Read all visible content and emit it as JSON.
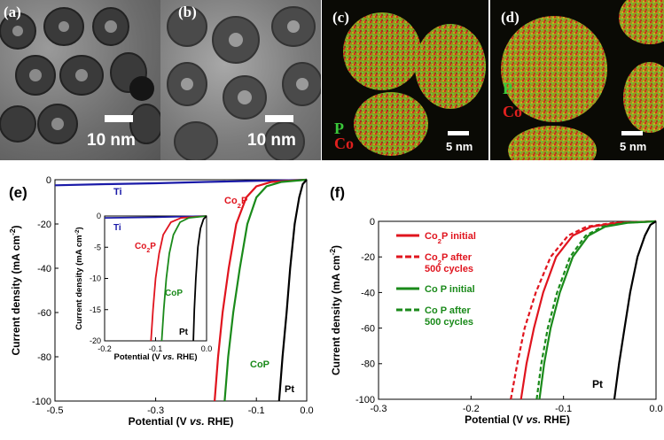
{
  "panels": {
    "a": {
      "label": "(a)",
      "scale": "10 nm"
    },
    "b": {
      "label": "(b)",
      "scale": "10 nm"
    },
    "c": {
      "label": "(c)",
      "scale": "5 nm",
      "elem1": "P",
      "elem2": "Co"
    },
    "d": {
      "label": "(d)",
      "scale": "5 nm",
      "elem1": "P",
      "elem2": "Co"
    },
    "e": {
      "label": "(e)"
    },
    "f": {
      "label": "(f)"
    }
  },
  "colors": {
    "ti": "#1a1aa8",
    "co2p": "#e0141e",
    "cop": "#1a8a1a",
    "pt": "#000000",
    "map_red": "#d8281e",
    "map_green": "#6cc23a"
  },
  "chart_data": [
    {
      "type": "line",
      "panel": "(e)",
      "xlabel": "Potential (V vs. RHE)",
      "ylabel": "Current density (mA cm-2)",
      "xlim": [
        -0.5,
        0.0
      ],
      "ylim": [
        -100,
        0
      ],
      "x_ticks": [
        "-0.5",
        "-0.3",
        "-0.1",
        "0.0"
      ],
      "y_ticks": [
        "0",
        "-20",
        "-40",
        "-60",
        "-80",
        "-100"
      ],
      "series": [
        {
          "name": "Ti",
          "points": [
            [
              -0.5,
              -2.5
            ],
            [
              -0.4,
              -2.0
            ],
            [
              -0.3,
              -1.6
            ],
            [
              -0.2,
              -1.0
            ],
            [
              -0.1,
              -0.5
            ],
            [
              -0.05,
              -0.3
            ],
            [
              0.0,
              0.0
            ]
          ]
        },
        {
          "name": "Co2P",
          "points": [
            [
              -0.183,
              -100
            ],
            [
              -0.176,
              -80
            ],
            [
              -0.167,
              -60
            ],
            [
              -0.155,
              -40
            ],
            [
              -0.14,
              -20
            ],
            [
              -0.12,
              -8
            ],
            [
              -0.1,
              -3
            ],
            [
              -0.07,
              -1
            ],
            [
              0.0,
              0.0
            ]
          ]
        },
        {
          "name": "CoP",
          "points": [
            [
              -0.163,
              -100
            ],
            [
              -0.156,
              -80
            ],
            [
              -0.146,
              -60
            ],
            [
              -0.133,
              -40
            ],
            [
              -0.118,
              -20
            ],
            [
              -0.1,
              -8
            ],
            [
              -0.08,
              -3
            ],
            [
              -0.05,
              -1
            ],
            [
              0.0,
              0.0
            ]
          ]
        },
        {
          "name": "Pt",
          "points": [
            [
              -0.055,
              -100
            ],
            [
              -0.048,
              -80
            ],
            [
              -0.04,
              -60
            ],
            [
              -0.033,
              -40
            ],
            [
              -0.024,
              -20
            ],
            [
              -0.015,
              -8
            ],
            [
              -0.008,
              -2
            ],
            [
              0.0,
              0.0
            ]
          ]
        }
      ],
      "inset": {
        "xlabel": "Potential (V vs. RHE)",
        "ylabel": "Current density (mA cm-2)",
        "xlim": [
          -0.2,
          0.0
        ],
        "ylim": [
          -20,
          0
        ],
        "x_ticks": [
          "-0.2",
          "-0.1",
          "0.0"
        ],
        "y_ticks": [
          "0",
          "-5",
          "-10",
          "-15",
          "-20"
        ],
        "series": [
          {
            "name": "Ti",
            "points": [
              [
                -0.2,
                -0.3
              ],
              [
                -0.1,
                -0.2
              ],
              [
                0.0,
                0.0
              ]
            ]
          },
          {
            "name": "Co2P",
            "points": [
              [
                -0.109,
                -20
              ],
              [
                -0.105,
                -15
              ],
              [
                -0.1,
                -10
              ],
              [
                -0.093,
                -6
              ],
              [
                -0.085,
                -3
              ],
              [
                -0.07,
                -1
              ],
              [
                -0.05,
                -0.3
              ],
              [
                0.0,
                0.0
              ]
            ]
          },
          {
            "name": "CoP",
            "points": [
              [
                -0.088,
                -20
              ],
              [
                -0.084,
                -15
              ],
              [
                -0.079,
                -10
              ],
              [
                -0.073,
                -6
              ],
              [
                -0.065,
                -3
              ],
              [
                -0.052,
                -1
              ],
              [
                -0.035,
                -0.3
              ],
              [
                0.0,
                0.0
              ]
            ]
          },
          {
            "name": "Pt",
            "points": [
              [
                -0.026,
                -20
              ],
              [
                -0.024,
                -15
              ],
              [
                -0.021,
                -10
              ],
              [
                -0.017,
                -5
              ],
              [
                -0.012,
                -2
              ],
              [
                -0.006,
                -0.5
              ],
              [
                0.0,
                0.0
              ]
            ]
          }
        ]
      }
    },
    {
      "type": "line",
      "panel": "(f)",
      "xlabel": "Potential (V vs. RHE)",
      "ylabel": "Current density (mA cm-2)",
      "xlim": [
        -0.3,
        0.0
      ],
      "ylim": [
        -100,
        0
      ],
      "x_ticks": [
        "-0.3",
        "-0.2",
        "-0.1",
        "0.0"
      ],
      "y_ticks": [
        "0",
        "-20",
        "-40",
        "-60",
        "-80",
        "-100"
      ],
      "legend": [
        "Co2P initial",
        "Co2P after 500 cycles",
        "Co P initial",
        "Co P after 500 cycles"
      ],
      "series": [
        {
          "name": "Co2P initial",
          "points": [
            [
              -0.146,
              -100
            ],
            [
              -0.14,
              -80
            ],
            [
              -0.132,
              -60
            ],
            [
              -0.122,
              -40
            ],
            [
              -0.108,
              -20
            ],
            [
              -0.09,
              -8
            ],
            [
              -0.07,
              -3
            ],
            [
              -0.04,
              -0.8
            ],
            [
              0.0,
              0.0
            ]
          ]
        },
        {
          "name": "Co2P after 500 cycles",
          "points": [
            [
              -0.157,
              -100
            ],
            [
              -0.15,
              -80
            ],
            [
              -0.142,
              -60
            ],
            [
              -0.13,
              -40
            ],
            [
              -0.114,
              -20
            ],
            [
              -0.095,
              -8
            ],
            [
              -0.075,
              -3
            ],
            [
              -0.045,
              -0.8
            ],
            [
              0.0,
              0.0
            ]
          ]
        },
        {
          "name": "Co P initial",
          "points": [
            [
              -0.126,
              -100
            ],
            [
              -0.121,
              -80
            ],
            [
              -0.114,
              -60
            ],
            [
              -0.104,
              -40
            ],
            [
              -0.09,
              -20
            ],
            [
              -0.073,
              -8
            ],
            [
              -0.055,
              -3
            ],
            [
              -0.03,
              -0.8
            ],
            [
              0.0,
              0.0
            ]
          ]
        },
        {
          "name": "Co P after 500 cycles",
          "points": [
            [
              -0.129,
              -100
            ],
            [
              -0.124,
              -80
            ],
            [
              -0.117,
              -60
            ],
            [
              -0.107,
              -40
            ],
            [
              -0.093,
              -20
            ],
            [
              -0.076,
              -8
            ],
            [
              -0.058,
              -3
            ],
            [
              -0.033,
              -0.8
            ],
            [
              0.0,
              0.0
            ]
          ]
        },
        {
          "name": "Pt",
          "points": [
            [
              -0.045,
              -100
            ],
            [
              -0.04,
              -80
            ],
            [
              -0.034,
              -60
            ],
            [
              -0.028,
              -40
            ],
            [
              -0.02,
              -20
            ],
            [
              -0.012,
              -8
            ],
            [
              -0.006,
              -2
            ],
            [
              0.0,
              0.0
            ]
          ]
        }
      ]
    }
  ]
}
